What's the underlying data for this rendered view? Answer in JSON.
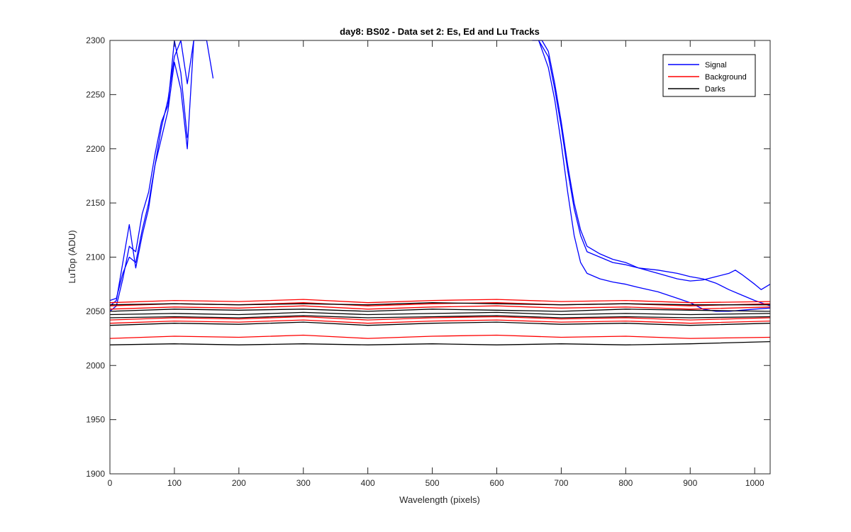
{
  "chart_data": {
    "type": "line",
    "title": "day8: BS02 - Data set 2: Es, Ed and Lu Tracks",
    "xlabel": "Wavelength (pixels)",
    "ylabel": "LuTop (ADU)",
    "xlim": [
      0,
      1024
    ],
    "ylim": [
      1900,
      2300
    ],
    "xticks": [
      0,
      100,
      200,
      300,
      400,
      500,
      600,
      700,
      800,
      900,
      1000
    ],
    "yticks": [
      1900,
      1950,
      2000,
      2050,
      2100,
      2150,
      2200,
      2250,
      2300
    ],
    "grid": false,
    "legend_position": "top-right",
    "legend": [
      {
        "label": "Signal",
        "color": "#0000ff"
      },
      {
        "label": "Background",
        "color": "#ff0000"
      },
      {
        "label": "Darks",
        "color": "#000000"
      }
    ],
    "series": [
      {
        "group": "Signal",
        "color": "#0000ff",
        "x": [
          0,
          10,
          20,
          30,
          40,
          50,
          60,
          70,
          80,
          90,
          100,
          110,
          120,
          130,
          140,
          150,
          160
        ],
        "y": [
          2060,
          2062,
          2085,
          2100,
          2095,
          2125,
          2150,
          2185,
          2220,
          2245,
          2285,
          2300,
          2260,
          2300,
          2300,
          2300,
          2265
        ]
      },
      {
        "group": "Signal",
        "color": "#0000ff",
        "x": [
          0,
          10,
          20,
          30,
          40,
          50,
          60,
          70,
          80,
          90,
          100,
          110,
          120,
          130
        ],
        "y": [
          2055,
          2060,
          2095,
          2130,
          2090,
          2120,
          2145,
          2185,
          2210,
          2235,
          2280,
          2255,
          2200,
          2300
        ]
      },
      {
        "group": "Signal",
        "color": "#0000ff",
        "x": [
          0,
          10,
          20,
          30,
          40,
          50,
          60,
          70,
          80,
          90,
          100,
          110,
          120
        ],
        "y": [
          2050,
          2055,
          2080,
          2110,
          2105,
          2140,
          2160,
          2195,
          2225,
          2240,
          2300,
          2270,
          2210
        ]
      },
      {
        "group": "Signal",
        "color": "#0000ff",
        "x": [
          655,
          670,
          680,
          690,
          700,
          710,
          720,
          730,
          740,
          760,
          780,
          800,
          820,
          850,
          880,
          900,
          920,
          940,
          960,
          970,
          980,
          1000,
          1010,
          1024
        ],
        "y": [
          2300,
          2300,
          2290,
          2260,
          2225,
          2185,
          2150,
          2125,
          2110,
          2103,
          2098,
          2095,
          2090,
          2085,
          2080,
          2078,
          2079,
          2082,
          2085,
          2088,
          2084,
          2075,
          2070,
          2075
        ]
      },
      {
        "group": "Signal",
        "color": "#0000ff",
        "x": [
          665,
          680,
          690,
          700,
          710,
          720,
          730,
          740,
          760,
          780,
          800,
          820,
          850,
          880,
          900,
          920,
          940,
          960,
          980,
          1000,
          1024
        ],
        "y": [
          2300,
          2285,
          2255,
          2220,
          2180,
          2145,
          2120,
          2105,
          2100,
          2095,
          2093,
          2090,
          2088,
          2085,
          2082,
          2080,
          2076,
          2070,
          2065,
          2060,
          2055
        ]
      },
      {
        "group": "Signal",
        "color": "#0000ff",
        "x": [
          665,
          680,
          690,
          700,
          710,
          720,
          730,
          740,
          760,
          780,
          800,
          820,
          850,
          880,
          900,
          920,
          940,
          960,
          980,
          1000,
          1024
        ],
        "y": [
          2300,
          2275,
          2245,
          2205,
          2160,
          2120,
          2095,
          2085,
          2080,
          2077,
          2075,
          2072,
          2068,
          2062,
          2058,
          2052,
          2050,
          2050,
          2051,
          2052,
          2053
        ]
      },
      {
        "group": "Background",
        "color": "#ff0000",
        "x": [
          0,
          100,
          200,
          300,
          400,
          500,
          600,
          700,
          800,
          900,
          1024
        ],
        "y": [
          2058,
          2060,
          2059,
          2061,
          2058,
          2060,
          2061,
          2059,
          2060,
          2058,
          2059
        ]
      },
      {
        "group": "Background",
        "color": "#ff0000",
        "x": [
          0,
          100,
          200,
          300,
          400,
          500,
          600,
          700,
          800,
          900,
          1024
        ],
        "y": [
          2055,
          2057,
          2056,
          2058,
          2055,
          2057,
          2058,
          2056,
          2057,
          2055,
          2057
        ]
      },
      {
        "group": "Background",
        "color": "#ff0000",
        "x": [
          0,
          100,
          200,
          300,
          400,
          500,
          600,
          700,
          800,
          900,
          1024
        ],
        "y": [
          2052,
          2054,
          2053,
          2055,
          2052,
          2054,
          2055,
          2053,
          2054,
          2052,
          2054
        ]
      },
      {
        "group": "Background",
        "color": "#ff0000",
        "x": [
          0,
          100,
          200,
          300,
          400,
          500,
          600,
          700,
          800,
          900,
          1024
        ],
        "y": [
          2042,
          2044,
          2043,
          2045,
          2042,
          2044,
          2045,
          2043,
          2044,
          2042,
          2044
        ]
      },
      {
        "group": "Background",
        "color": "#ff0000",
        "x": [
          0,
          100,
          200,
          300,
          400,
          500,
          600,
          700,
          800,
          900,
          1024
        ],
        "y": [
          2039,
          2041,
          2040,
          2042,
          2039,
          2041,
          2042,
          2040,
          2041,
          2039,
          2041
        ]
      },
      {
        "group": "Background",
        "color": "#ff0000",
        "x": [
          0,
          100,
          200,
          300,
          400,
          500,
          600,
          700,
          800,
          900,
          1024
        ],
        "y": [
          2025,
          2027,
          2026,
          2028,
          2025,
          2027,
          2028,
          2026,
          2027,
          2025,
          2026
        ]
      },
      {
        "group": "Darks",
        "color": "#000000",
        "x": [
          0,
          100,
          200,
          300,
          400,
          500,
          600,
          700,
          800,
          900,
          1024
        ],
        "y": [
          2056,
          2057,
          2056,
          2057,
          2056,
          2058,
          2057,
          2056,
          2057,
          2056,
          2056
        ]
      },
      {
        "group": "Darks",
        "color": "#000000",
        "x": [
          0,
          100,
          200,
          300,
          400,
          500,
          600,
          700,
          800,
          900,
          1024
        ],
        "y": [
          2050,
          2052,
          2051,
          2052,
          2050,
          2052,
          2051,
          2050,
          2052,
          2051,
          2050
        ]
      },
      {
        "group": "Darks",
        "color": "#000000",
        "x": [
          0,
          100,
          200,
          300,
          400,
          500,
          600,
          700,
          800,
          900,
          1024
        ],
        "y": [
          2047,
          2048,
          2047,
          2049,
          2047,
          2048,
          2049,
          2047,
          2048,
          2047,
          2048
        ]
      },
      {
        "group": "Darks",
        "color": "#000000",
        "x": [
          0,
          100,
          200,
          300,
          400,
          500,
          600,
          700,
          800,
          900,
          1024
        ],
        "y": [
          2044,
          2045,
          2044,
          2046,
          2044,
          2045,
          2046,
          2044,
          2045,
          2044,
          2045
        ]
      },
      {
        "group": "Darks",
        "color": "#000000",
        "x": [
          0,
          100,
          200,
          300,
          400,
          500,
          600,
          700,
          800,
          900,
          1024
        ],
        "y": [
          2037,
          2039,
          2038,
          2040,
          2037,
          2039,
          2040,
          2038,
          2039,
          2037,
          2039
        ]
      },
      {
        "group": "Darks",
        "color": "#000000",
        "x": [
          0,
          100,
          200,
          300,
          400,
          500,
          600,
          700,
          800,
          900,
          1024
        ],
        "y": [
          2019,
          2020,
          2019,
          2020,
          2019,
          2020,
          2019,
          2020,
          2019,
          2020,
          2022
        ]
      }
    ]
  }
}
